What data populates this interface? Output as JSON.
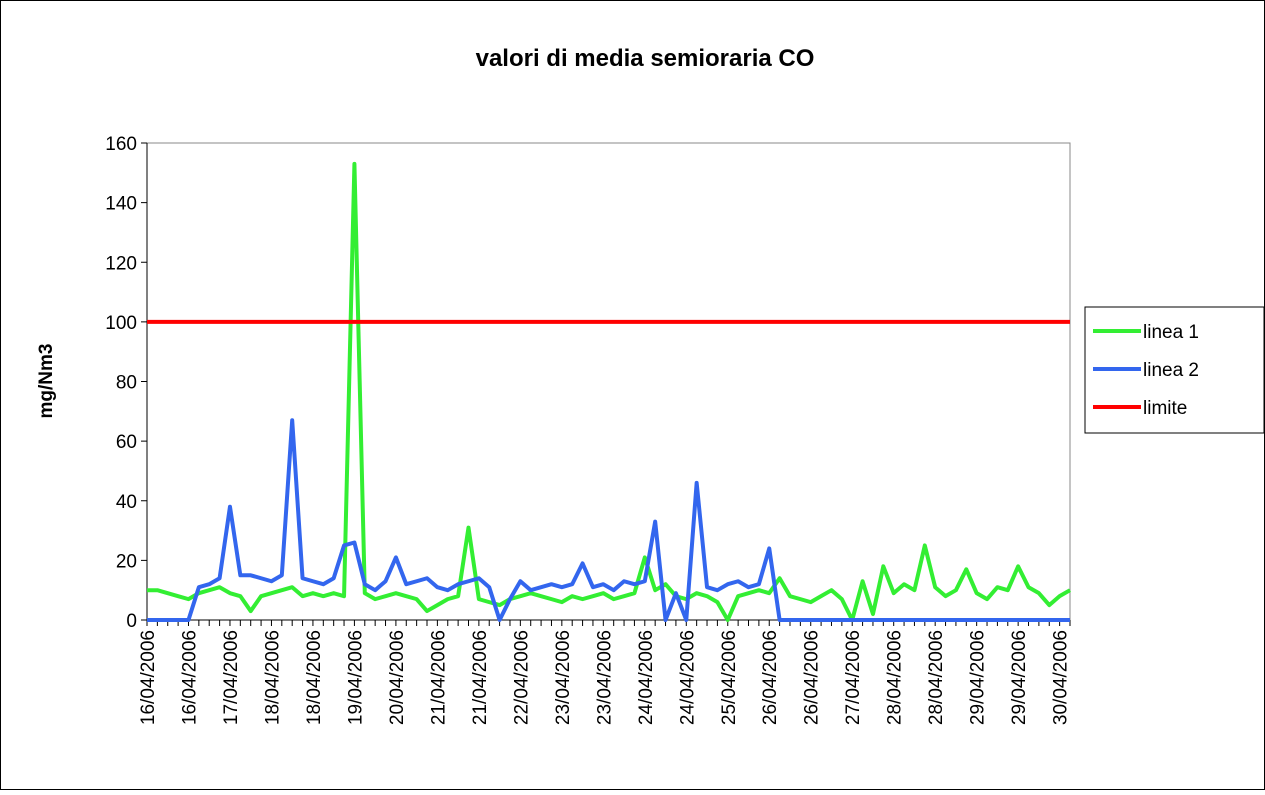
{
  "chart_data": {
    "type": "line",
    "title": "valori di media semioraria CO",
    "y_label": "mg/Nm3",
    "categories": [
      "16/04/2006",
      null,
      null,
      null,
      "16/04/2006",
      null,
      null,
      null,
      "17/04/2006",
      null,
      null,
      null,
      "18/04/2006",
      null,
      null,
      null,
      "18/04/2006",
      null,
      null,
      null,
      "19/04/2006",
      null,
      null,
      null,
      "20/04/2006",
      null,
      null,
      null,
      "21/04/2006",
      null,
      null,
      null,
      "21/04/2006",
      null,
      null,
      null,
      "22/04/2006",
      null,
      null,
      null,
      "23/04/2006",
      null,
      null,
      null,
      "23/04/2006",
      null,
      null,
      null,
      "24/04/2006",
      null,
      null,
      null,
      "24/04/2006",
      null,
      null,
      null,
      "25/04/2006",
      null,
      null,
      null,
      "26/04/2006",
      null,
      null,
      null,
      "26/04/2006",
      null,
      null,
      null,
      "27/04/2006",
      null,
      null,
      null,
      "28/04/2006",
      null,
      null,
      null,
      "28/04/2006",
      null,
      null,
      null,
      "29/04/2006",
      null,
      null,
      null,
      "29/04/2006",
      null,
      null,
      null,
      "30/04/2006",
      null
    ],
    "series": [
      {
        "name": "linea 1",
        "color": "#33ee33",
        "values": [
          10,
          10,
          9,
          8,
          7,
          9,
          10,
          11,
          9,
          8,
          3,
          8,
          9,
          10,
          11,
          8,
          9,
          8,
          9,
          8,
          153,
          9,
          7,
          8,
          9,
          8,
          7,
          3,
          5,
          7,
          8,
          31,
          7,
          6,
          5,
          7,
          8,
          9,
          8,
          7,
          6,
          8,
          7,
          8,
          9,
          7,
          8,
          9,
          21,
          10,
          12,
          8,
          7,
          9,
          8,
          6,
          0,
          8,
          9,
          10,
          9,
          14,
          8,
          7,
          6,
          8,
          10,
          7,
          0,
          13,
          2,
          18,
          9,
          12,
          10,
          25,
          11,
          8,
          10,
          17,
          9,
          7,
          11,
          10,
          18,
          11,
          9,
          5,
          8,
          10
        ]
      },
      {
        "name": "linea 2",
        "color": "#3366ee",
        "values": [
          0,
          0,
          0,
          0,
          0,
          11,
          12,
          14,
          38,
          15,
          15,
          14,
          13,
          15,
          67,
          14,
          13,
          12,
          14,
          25,
          26,
          12,
          10,
          13,
          21,
          12,
          13,
          14,
          11,
          10,
          12,
          13,
          14,
          11,
          0,
          7,
          13,
          10,
          11,
          12,
          11,
          12,
          19,
          11,
          12,
          10,
          13,
          12,
          13,
          33,
          0,
          9,
          0,
          46,
          11,
          10,
          12,
          13,
          11,
          12,
          24,
          0,
          0,
          0,
          0,
          0,
          0,
          0,
          0,
          0,
          0,
          0,
          0,
          0,
          0,
          0,
          0,
          0,
          0,
          0,
          0,
          0,
          0,
          0,
          0,
          0,
          0,
          0,
          0,
          0
        ]
      },
      {
        "name": "limite",
        "color": "#ff0000",
        "values": [
          100,
          100,
          100,
          100,
          100,
          100,
          100,
          100,
          100,
          100,
          100,
          100,
          100,
          100,
          100,
          100,
          100,
          100,
          100,
          100,
          100,
          100,
          100,
          100,
          100,
          100,
          100,
          100,
          100,
          100,
          100,
          100,
          100,
          100,
          100,
          100,
          100,
          100,
          100,
          100,
          100,
          100,
          100,
          100,
          100,
          100,
          100,
          100,
          100,
          100,
          100,
          100,
          100,
          100,
          100,
          100,
          100,
          100,
          100,
          100,
          100,
          100,
          100,
          100,
          100,
          100,
          100,
          100,
          100,
          100,
          100,
          100,
          100,
          100,
          100,
          100,
          100,
          100,
          100,
          100,
          100,
          100,
          100,
          100,
          100,
          100,
          100,
          100,
          100,
          100
        ]
      }
    ],
    "ylim": [
      0,
      160
    ],
    "yticks": [
      0,
      20,
      40,
      60,
      80,
      100,
      120,
      140,
      160
    ],
    "legend": "right"
  }
}
